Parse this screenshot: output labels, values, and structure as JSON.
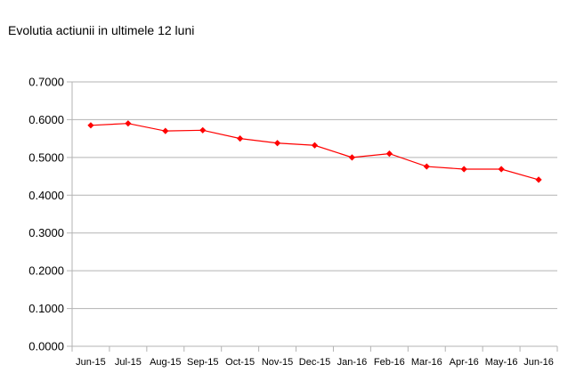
{
  "chart_data": {
    "type": "line",
    "title": "Evolutia actiunii in ultimele 12 luni",
    "xlabel": "",
    "ylabel": "",
    "categories": [
      "Jun-15",
      "Jul-15",
      "Aug-15",
      "Sep-15",
      "Oct-15",
      "Nov-15",
      "Dec-15",
      "Jan-16",
      "Feb-16",
      "Mar-16",
      "Apr-16",
      "May-16",
      "Jun-16"
    ],
    "series": [
      {
        "values": [
          0.585,
          0.59,
          0.57,
          0.572,
          0.55,
          0.538,
          0.532,
          0.5,
          0.51,
          0.476,
          0.469,
          0.469,
          0.441
        ]
      }
    ],
    "ylim": [
      0,
      0.7
    ],
    "yticks": [
      "0.0000",
      "0.1000",
      "0.2000",
      "0.3000",
      "0.4000",
      "0.5000",
      "0.6000",
      "0.7000"
    ],
    "grid": true,
    "legend": "none",
    "colors": {
      "line": "#ff0000",
      "marker": "#ff0000",
      "grid": "#b3b3b3",
      "axis": "#b3b3b3"
    }
  }
}
